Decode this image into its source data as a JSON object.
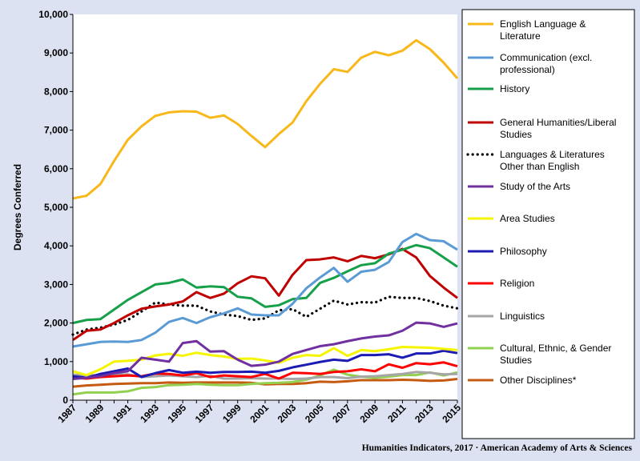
{
  "chart_data": {
    "type": "line",
    "ylabel": "Degrees Conferred",
    "ylim": [
      0,
      10000
    ],
    "y_ticks": [
      "0",
      "1,000",
      "2,000",
      "3,000",
      "4,000",
      "5,000",
      "6,000",
      "7,000",
      "8,000",
      "9,000",
      "10,000"
    ],
    "x": [
      1987,
      1988,
      1989,
      1990,
      1991,
      1992,
      1993,
      1994,
      1995,
      1996,
      1997,
      1998,
      1999,
      2000,
      2001,
      2002,
      2003,
      2004,
      2005,
      2006,
      2007,
      2008,
      2009,
      2010,
      2011,
      2012,
      2013,
      2014,
      2015
    ],
    "x_ticks": [
      "1987",
      "1989",
      "1991",
      "1993",
      "1995",
      "1997",
      "1999",
      "2001",
      "2003",
      "2005",
      "2007",
      "2009",
      "2011",
      "2013",
      "2015"
    ],
    "legend_position": "right",
    "grid": false,
    "credit": "Humanities Indicators, 2017 · American Academy of Arts & Sciences",
    "series": [
      {
        "name": "English Language & Literature",
        "color": "#F9B81A",
        "dash": false,
        "values": [
          5230,
          5300,
          5600,
          6200,
          6750,
          7100,
          7370,
          7460,
          7490,
          7480,
          7320,
          7380,
          7160,
          6850,
          6560,
          6900,
          7200,
          7750,
          8200,
          8580,
          8510,
          8880,
          9030,
          8940,
          9060,
          9330,
          9100,
          8750,
          8340
        ]
      },
      {
        "name": "Communication (excl. professional)",
        "color": "#5B9BD5",
        "dash": false,
        "values": [
          1390,
          1450,
          1510,
          1520,
          1510,
          1560,
          1750,
          2030,
          2130,
          2000,
          2150,
          2250,
          2380,
          2220,
          2200,
          2200,
          2500,
          2900,
          3180,
          3430,
          3070,
          3330,
          3380,
          3580,
          4100,
          4310,
          4150,
          4120,
          3900
        ]
      },
      {
        "name": "History",
        "color": "#17A04A",
        "dash": false,
        "values": [
          2000,
          2080,
          2100,
          2350,
          2600,
          2800,
          3000,
          3040,
          3130,
          2920,
          2950,
          2930,
          2680,
          2640,
          2420,
          2460,
          2620,
          2650,
          3040,
          3170,
          3340,
          3500,
          3550,
          3800,
          3900,
          4020,
          3940,
          3700,
          3460
        ]
      },
      {
        "name": "General Humanities/Liberal Studies",
        "color": "#C00000",
        "dash": false,
        "values": [
          1560,
          1800,
          1830,
          2000,
          2200,
          2370,
          2430,
          2480,
          2560,
          2800,
          2650,
          2760,
          3030,
          3210,
          3160,
          2710,
          3250,
          3630,
          3650,
          3700,
          3600,
          3740,
          3680,
          3780,
          3920,
          3700,
          3220,
          2920,
          2650
        ]
      },
      {
        "name": "Languages & Literatures Other than English",
        "color": "#000000",
        "dash": true,
        "values": [
          1700,
          1830,
          1880,
          1960,
          2080,
          2300,
          2530,
          2480,
          2450,
          2450,
          2300,
          2220,
          2180,
          2080,
          2120,
          2330,
          2360,
          2160,
          2370,
          2580,
          2480,
          2540,
          2530,
          2680,
          2650,
          2650,
          2570,
          2450,
          2380
        ]
      },
      {
        "name": "Study of the Arts",
        "color": "#7030A0",
        "dash": false,
        "values": [
          550,
          580,
          620,
          700,
          750,
          1100,
          1050,
          1000,
          1480,
          1530,
          1260,
          1270,
          1050,
          890,
          920,
          1000,
          1200,
          1300,
          1400,
          1450,
          1530,
          1600,
          1650,
          1680,
          1800,
          2010,
          1990,
          1900,
          1990
        ]
      },
      {
        "name": "Area Studies",
        "color": "#F5F500",
        "dash": false,
        "values": [
          750,
          650,
          800,
          1000,
          1020,
          1050,
          1160,
          1200,
          1150,
          1230,
          1170,
          1130,
          1070,
          1080,
          1030,
          970,
          1100,
          1170,
          1150,
          1350,
          1150,
          1300,
          1270,
          1320,
          1380,
          1370,
          1360,
          1330,
          1300
        ]
      },
      {
        "name": "Philosophy",
        "color": "#1C1CB4",
        "dash": false,
        "values": [
          620,
          580,
          680,
          750,
          820,
          600,
          700,
          780,
          710,
          740,
          710,
          730,
          730,
          740,
          710,
          760,
          850,
          920,
          990,
          1050,
          1020,
          1170,
          1170,
          1190,
          1100,
          1210,
          1210,
          1280,
          1220
        ]
      },
      {
        "name": "Religion",
        "color": "#FF0000",
        "dash": false,
        "values": [
          580,
          560,
          600,
          620,
          640,
          620,
          690,
          680,
          640,
          700,
          600,
          640,
          620,
          600,
          680,
          560,
          710,
          700,
          680,
          730,
          750,
          800,
          750,
          930,
          840,
          960,
          930,
          980,
          880
        ]
      },
      {
        "name": "Linguistics",
        "color": "#A6A6A6",
        "dash": false,
        "values": [
          660,
          650,
          640,
          660,
          670,
          600,
          620,
          640,
          620,
          600,
          630,
          560,
          560,
          570,
          560,
          560,
          550,
          560,
          600,
          600,
          570,
          610,
          620,
          650,
          680,
          730,
          710,
          670,
          680
        ]
      },
      {
        "name": "Cultural, Ethnic, & Gender Studies",
        "color": "#92D050",
        "dash": false,
        "values": [
          150,
          200,
          200,
          200,
          230,
          320,
          340,
          390,
          400,
          420,
          400,
          390,
          390,
          420,
          440,
          450,
          470,
          530,
          640,
          790,
          660,
          610,
          580,
          610,
          650,
          650,
          720,
          640,
          720
        ]
      },
      {
        "name": "Other Disciplines*",
        "color": "#C55A11",
        "dash": false,
        "values": [
          350,
          380,
          400,
          420,
          430,
          440,
          440,
          460,
          450,
          460,
          460,
          460,
          460,
          450,
          410,
          420,
          420,
          440,
          480,
          470,
          490,
          520,
          520,
          520,
          530,
          520,
          500,
          510,
          550
        ]
      }
    ]
  }
}
